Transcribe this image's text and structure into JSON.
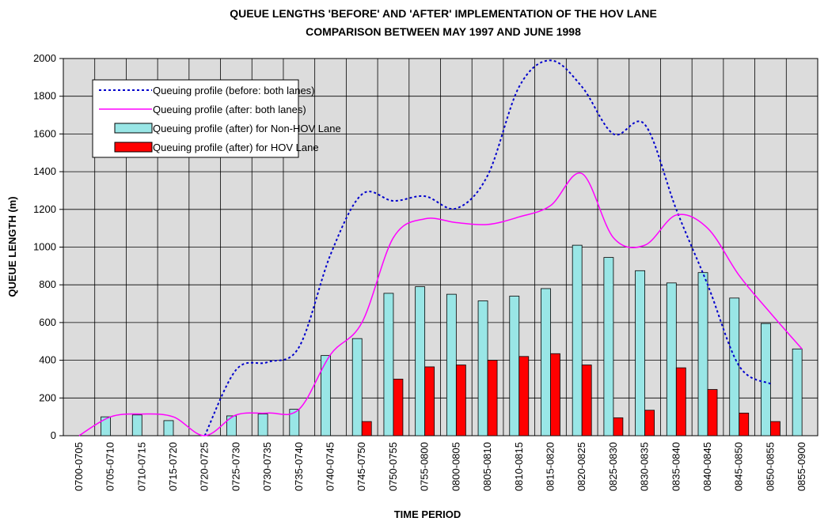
{
  "chart_data": {
    "type": "bar",
    "title": "QUEUE LENGTHS 'BEFORE' AND 'AFTER' IMPLEMENTATION OF THE HOV LANE",
    "subtitle": "COMPARISON BETWEEN MAY 1997 AND JUNE 1998",
    "x_label": "TIME PERIOD",
    "y_label": "QUEUE LENGTH (m)",
    "categories": [
      "0700-0705",
      "0705-0710",
      "0710-0715",
      "0715-0720",
      "0720-0725",
      "0725-0730",
      "0730-0735",
      "0735-0740",
      "0740-0745",
      "0745-0750",
      "0750-0755",
      "0755-0800",
      "0800-0805",
      "0805-0810",
      "0810-0815",
      "0815-0820",
      "0820-0825",
      "0825-0830",
      "0830-0835",
      "0835-0840",
      "0840-0845",
      "0845-0850",
      "0850-0855",
      "0855-0900"
    ],
    "series": [
      {
        "name": "Queuing profile (before: both lanes)",
        "kind": "line",
        "dash": true,
        "color": "#0000cc",
        "values": [
          null,
          null,
          null,
          null,
          0,
          350,
          390,
          470,
          960,
          1280,
          1245,
          1270,
          1205,
          1380,
          1850,
          1990,
          1850,
          1600,
          1650,
          1200,
          800,
          370,
          275,
          null
        ]
      },
      {
        "name": "Queuing profile (after: both lanes)",
        "kind": "line",
        "dash": false,
        "color": "#ff00ff",
        "values": [
          0,
          100,
          115,
          100,
          0,
          110,
          120,
          140,
          430,
          600,
          1050,
          1150,
          1130,
          1120,
          1160,
          1220,
          1390,
          1050,
          1010,
          1170,
          1100,
          850,
          650,
          460
        ]
      },
      {
        "name": "Queuing profile (after) for Non-HOV Lane",
        "kind": "bar",
        "color": "#99e6e6",
        "values": [
          null,
          100,
          110,
          80,
          null,
          105,
          115,
          140,
          425,
          515,
          755,
          790,
          750,
          715,
          740,
          780,
          1010,
          945,
          875,
          810,
          865,
          730,
          595,
          460
        ]
      },
      {
        "name": "Queuing profile (after) for HOV Lane",
        "kind": "bar",
        "color": "#ff0000",
        "values": [
          null,
          null,
          null,
          null,
          null,
          null,
          null,
          null,
          null,
          75,
          300,
          365,
          375,
          400,
          420,
          435,
          375,
          95,
          135,
          360,
          245,
          120,
          75,
          null
        ]
      }
    ],
    "ylim": [
      0,
      2000
    ],
    "yticks": [
      0,
      200,
      400,
      600,
      800,
      1000,
      1200,
      1400,
      1600,
      1800,
      2000
    ],
    "grid": true
  }
}
